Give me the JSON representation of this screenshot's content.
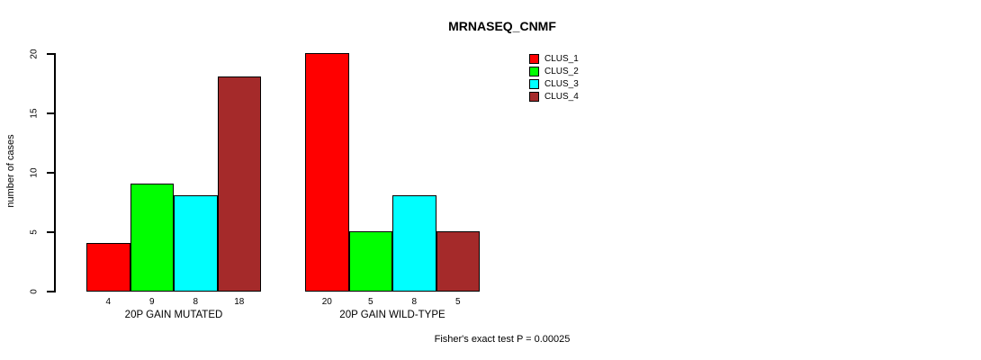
{
  "chart_data": {
    "type": "bar",
    "title": "MRNASEQ_CNMF",
    "xlabel": "",
    "ylabel": "number of cases",
    "categories": [
      "20P GAIN MUTATED",
      "20P GAIN WILD-TYPE"
    ],
    "series": [
      {
        "name": "CLUS_1",
        "color": "#FF0000",
        "values": [
          4,
          20
        ]
      },
      {
        "name": "CLUS_2",
        "color": "#00FF00",
        "values": [
          9,
          5
        ]
      },
      {
        "name": "CLUS_3",
        "color": "#00FFFF",
        "values": [
          8,
          8
        ]
      },
      {
        "name": "CLUS_4",
        "color": "#A52A2A",
        "values": [
          18,
          5
        ]
      }
    ],
    "ylim": [
      0,
      20
    ],
    "yticks": [
      0,
      5,
      10,
      15,
      20
    ],
    "grid": false,
    "bar_value_labels_shown": true,
    "legend_position": "top-right",
    "annotation": "Fisher's exact test P = 0.00025"
  },
  "colors": {
    "axis": "#000000",
    "background": "#FFFFFF",
    "bar_border": "#000000"
  }
}
